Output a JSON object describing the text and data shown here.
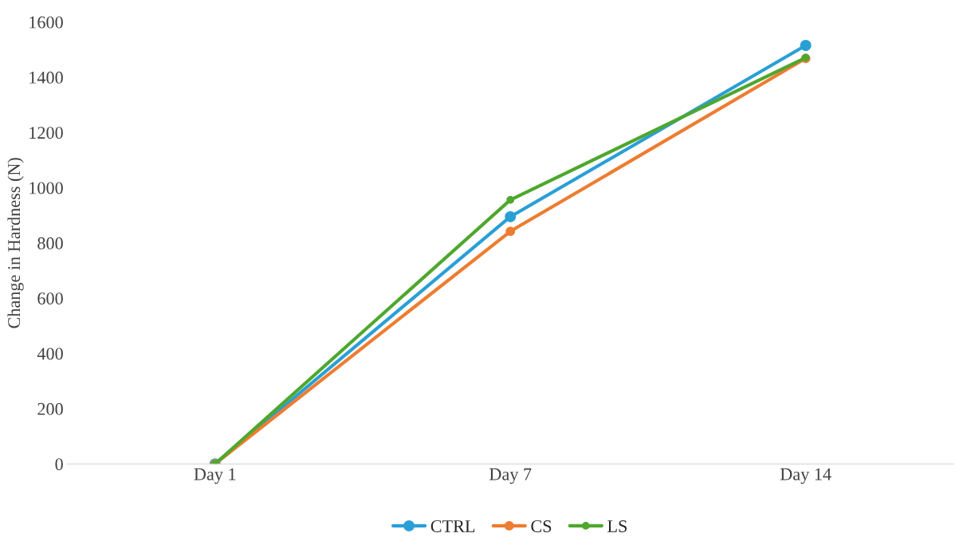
{
  "chart_data": {
    "type": "line",
    "ylabel": "Change in Hardness (N)",
    "categories": [
      "Day 1",
      "Day 7",
      "Day 14"
    ],
    "series": [
      {
        "name": "CTRL",
        "color": "#2a9fd6",
        "values": [
          0,
          895,
          1515
        ]
      },
      {
        "name": "CS",
        "color": "#ed7d31",
        "values": [
          0,
          842,
          1468
        ]
      },
      {
        "name": "LS",
        "color": "#4ea72e",
        "values": [
          0,
          956,
          1471
        ]
      }
    ],
    "ylim": [
      0,
      1600
    ],
    "yticks": [
      0,
      200,
      400,
      600,
      800,
      1000,
      1200,
      1400,
      1600
    ],
    "grid": false,
    "legend": "bottom",
    "marker": "circle"
  }
}
